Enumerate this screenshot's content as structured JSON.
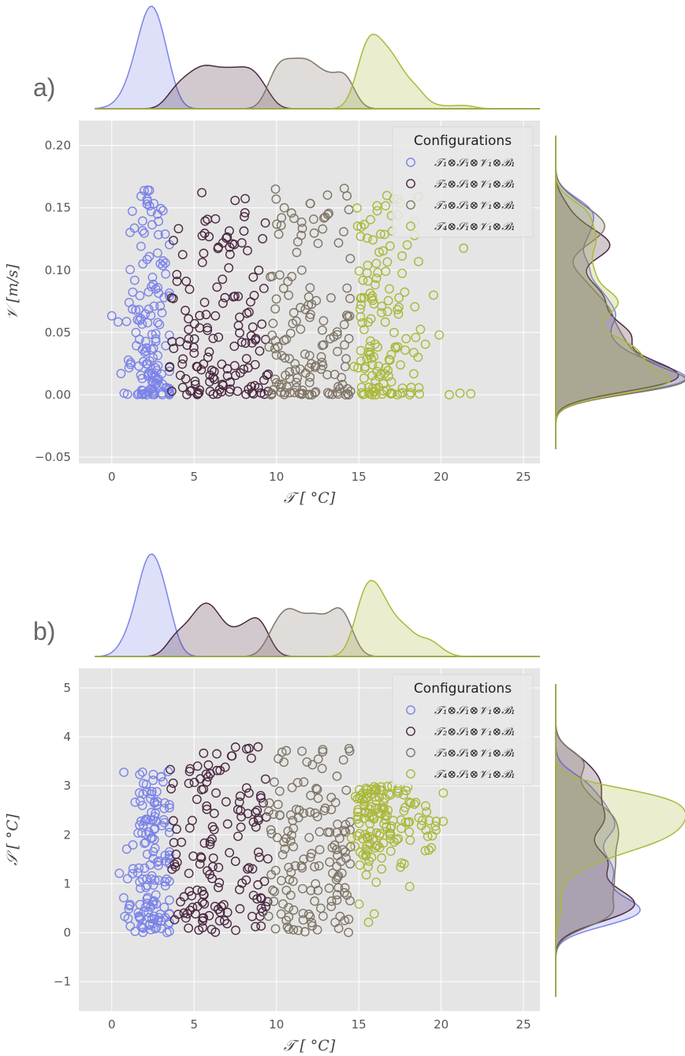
{
  "colors": {
    "panel_bg": "#e5e5e5",
    "grid": "#ffffff",
    "series": [
      "#7b83e8",
      "#4a2840",
      "#7f7566",
      "#aab83a"
    ]
  },
  "chart_data": [
    {
      "type": "scatter",
      "panel_label": "a)",
      "xlabel": "𝒯 [ °C]",
      "ylabel": "𝒱 [m/s]",
      "xlim": [
        -2,
        26
      ],
      "ylim": [
        -0.055,
        0.22
      ],
      "xticks": [
        "0",
        "5",
        "10",
        "15",
        "20",
        "25"
      ],
      "yticks": [
        "−0.05",
        "0.00",
        "0.05",
        "0.10",
        "0.15",
        "0.20"
      ],
      "grid": true,
      "legend_position": "top-right",
      "legend_title": "Configurations",
      "marginal_plots": "kde top and right",
      "series": [
        {
          "name": "𝒯₁⊗𝒮₁⊗𝒱₁⊗ℬ₁",
          "x_range": [
            0,
            3.5
          ],
          "y_range": [
            0.0,
            0.167
          ],
          "approx_points": 150
        },
        {
          "name": "𝒯₂⊗𝒮₁⊗𝒱₁⊗ℬ₁",
          "x_range": [
            3.5,
            9.5
          ],
          "y_range": [
            0.0,
            0.167
          ],
          "approx_points": 150
        },
        {
          "name": "𝒯₃⊗𝒮₁⊗𝒱₁⊗ℬ₁",
          "x_range": [
            9.5,
            14.5
          ],
          "y_range": [
            0.0,
            0.167
          ],
          "approx_points": 150
        },
        {
          "name": "𝒯₄⊗𝒮₁⊗𝒱₁⊗ℬ₁",
          "x_range": [
            14.5,
            23.7
          ],
          "y_range": [
            0.0,
            0.16
          ],
          "approx_points": 150
        }
      ]
    },
    {
      "type": "scatter",
      "panel_label": "b)",
      "xlabel": "𝒯 [ °C]",
      "ylabel": "𝒮 [ °C]",
      "xlim": [
        -2,
        26
      ],
      "ylim": [
        -1.6,
        5.4
      ],
      "xticks": [
        "0",
        "5",
        "10",
        "15",
        "20",
        "25"
      ],
      "yticks": [
        "−1",
        "0",
        "1",
        "2",
        "3",
        "4",
        "5"
      ],
      "grid": true,
      "legend_position": "top-right",
      "legend_title": "Configurations",
      "marginal_plots": "kde top and right",
      "series": [
        {
          "name": "𝒯₁⊗𝒮₁⊗𝒱₁⊗ℬ₁",
          "x_range": [
            0,
            3.5
          ],
          "y_range": [
            0.0,
            3.3
          ],
          "approx_points": 150
        },
        {
          "name": "𝒯₂⊗𝒮₁⊗𝒱₁⊗ℬ₁",
          "x_range": [
            3.5,
            9.5
          ],
          "y_range": [
            0.0,
            3.8
          ],
          "approx_points": 150
        },
        {
          "name": "𝒯₃⊗𝒮₁⊗𝒱₁⊗ℬ₁",
          "x_range": [
            9.5,
            14.5
          ],
          "y_range": [
            0.0,
            3.8
          ],
          "approx_points": 150
        },
        {
          "name": "𝒯₄⊗𝒮₁⊗𝒱₁⊗ℬ₁",
          "x_range": [
            14.5,
            23.7
          ],
          "y_range": [
            0.0,
            3.8
          ],
          "approx_points": 150
        }
      ]
    }
  ]
}
